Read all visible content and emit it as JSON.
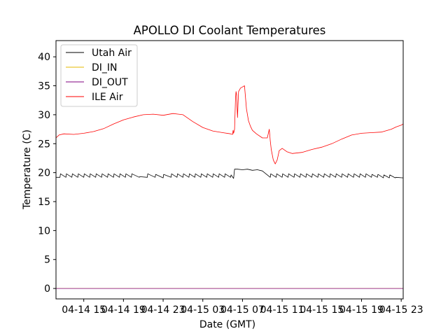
{
  "chart_data": {
    "type": "line",
    "title": "APOLLO DI Coolant Temperatures",
    "xlabel": "Date (GMT)",
    "ylabel": "Temperature (C)",
    "grid": false,
    "legend_position": "top-left",
    "x_unit": "hours since 04-14 11:00 GMT",
    "xlim": [
      1.2,
      36.2
    ],
    "ylim": [
      -1.8,
      42.8
    ],
    "x_ticks": [
      {
        "value": 4,
        "label": "04-14 15"
      },
      {
        "value": 8,
        "label": "04-14 19"
      },
      {
        "value": 12,
        "label": "04-14 23"
      },
      {
        "value": 16,
        "label": "04-15 03"
      },
      {
        "value": 20,
        "label": "04-15 07"
      },
      {
        "value": 24,
        "label": "04-15 11"
      },
      {
        "value": 28,
        "label": "04-15 15"
      },
      {
        "value": 32,
        "label": "04-15 19"
      },
      {
        "value": 36,
        "label": "04-15 23"
      }
    ],
    "y_ticks": [
      {
        "value": 0,
        "label": "0"
      },
      {
        "value": 5,
        "label": "5"
      },
      {
        "value": 10,
        "label": "10"
      },
      {
        "value": 15,
        "label": "15"
      },
      {
        "value": 20,
        "label": "20"
      },
      {
        "value": 25,
        "label": "25"
      },
      {
        "value": 30,
        "label": "30"
      },
      {
        "value": 35,
        "label": "35"
      },
      {
        "value": 40,
        "label": "40"
      }
    ],
    "series": [
      {
        "name": "Utah Air",
        "color": "#000000",
        "x": [
          1.2,
          1.6,
          1.65,
          2.2,
          2.25,
          2.8,
          2.85,
          3.4,
          3.45,
          4.0,
          4.05,
          4.6,
          4.65,
          5.2,
          5.25,
          5.8,
          5.85,
          6.4,
          6.45,
          7.0,
          7.05,
          7.6,
          7.65,
          8.2,
          8.25,
          8.8,
          8.85,
          9.6,
          9.65,
          10.4,
          10.45,
          11.2,
          11.25,
          12.0,
          12.05,
          12.8,
          12.85,
          13.4,
          13.45,
          14.0,
          14.05,
          14.6,
          14.65,
          15.2,
          15.25,
          15.8,
          15.85,
          16.4,
          16.45,
          17.0,
          17.05,
          17.6,
          17.65,
          18.2,
          18.25,
          18.8,
          18.85,
          19.1,
          19.2,
          19.5,
          20.0,
          20.5,
          21.0,
          21.5,
          22.0,
          22.5,
          22.8,
          22.85,
          23.4,
          23.45,
          24.0,
          24.05,
          24.6,
          24.65,
          25.2,
          25.25,
          25.8,
          25.85,
          26.4,
          26.45,
          27.0,
          27.05,
          27.6,
          27.65,
          28.2,
          28.25,
          28.8,
          28.85,
          29.4,
          29.45,
          30.0,
          30.05,
          30.6,
          30.65,
          31.2,
          31.25,
          31.8,
          31.85,
          32.4,
          32.45,
          33.0,
          33.05,
          33.6,
          33.65,
          34.2,
          34.25,
          34.8,
          34.85,
          35.4,
          35.45,
          36.2
        ],
        "y": [
          19.2,
          19.2,
          19.8,
          19.2,
          19.8,
          19.2,
          19.8,
          19.2,
          19.8,
          19.2,
          19.8,
          19.2,
          19.8,
          19.2,
          19.8,
          19.2,
          19.8,
          19.2,
          19.8,
          19.2,
          19.8,
          19.2,
          19.8,
          19.2,
          19.8,
          19.2,
          19.8,
          19.2,
          19.3,
          19.2,
          19.8,
          19.2,
          19.7,
          19.1,
          19.7,
          19.2,
          19.8,
          19.2,
          19.8,
          19.2,
          19.8,
          19.2,
          19.8,
          19.2,
          19.8,
          19.2,
          19.8,
          19.2,
          19.8,
          19.2,
          19.8,
          19.2,
          19.8,
          19.2,
          19.8,
          19.2,
          19.6,
          19.0,
          20.6,
          20.6,
          20.5,
          20.6,
          20.4,
          20.5,
          20.3,
          19.6,
          19.2,
          19.8,
          19.2,
          19.8,
          19.2,
          19.8,
          19.2,
          19.8,
          19.2,
          19.8,
          19.2,
          19.8,
          19.2,
          19.8,
          19.2,
          19.8,
          19.2,
          19.8,
          19.2,
          19.8,
          19.2,
          19.8,
          19.2,
          19.8,
          19.2,
          19.8,
          19.2,
          19.8,
          19.2,
          19.8,
          19.2,
          19.8,
          19.2,
          19.8,
          19.2,
          19.7,
          19.2,
          19.7,
          19.1,
          19.6,
          19.1,
          19.6,
          19.1,
          19.2,
          19.1
        ]
      },
      {
        "name": "DI_IN",
        "color": "#e6b800",
        "x": [
          1.2,
          36.2
        ],
        "y": [
          0.0,
          0.0
        ]
      },
      {
        "name": "DI_OUT",
        "color": "#800080",
        "x": [
          1.2,
          36.2
        ],
        "y": [
          0.0,
          0.0
        ]
      },
      {
        "name": "ILE Air",
        "color": "#ff0000",
        "x": [
          1.2,
          1.5,
          2.0,
          3.0,
          4.0,
          5.0,
          6.0,
          7.0,
          8.0,
          9.0,
          10.0,
          11.0,
          12.0,
          13.0,
          14.0,
          15.0,
          16.0,
          17.0,
          18.0,
          18.8,
          19.0,
          19.05,
          19.1,
          19.2,
          19.3,
          19.35,
          19.4,
          19.5,
          19.6,
          19.7,
          19.8,
          20.0,
          20.2,
          20.4,
          20.6,
          20.8,
          21.0,
          21.4,
          22.0,
          22.5,
          22.7,
          22.8,
          22.9,
          23.1,
          23.3,
          23.5,
          23.7,
          24.0,
          24.5,
          25.0,
          26.0,
          27.0,
          28.0,
          29.0,
          30.0,
          31.0,
          32.0,
          33.0,
          34.0,
          35.0,
          35.5,
          36.0,
          36.2
        ],
        "y": [
          26.0,
          26.5,
          26.7,
          26.6,
          26.8,
          27.1,
          27.6,
          28.4,
          29.1,
          29.6,
          30.0,
          30.1,
          29.9,
          30.2,
          30.0,
          28.8,
          27.8,
          27.2,
          26.9,
          26.7,
          26.6,
          27.3,
          26.8,
          27.5,
          33.0,
          34.0,
          33.5,
          29.5,
          34.0,
          34.3,
          34.6,
          34.8,
          35.0,
          31.0,
          29.0,
          28.0,
          27.3,
          26.7,
          26.0,
          26.0,
          27.5,
          25.5,
          24.0,
          22.2,
          21.5,
          22.2,
          23.8,
          24.2,
          23.6,
          23.3,
          23.5,
          24.0,
          24.4,
          25.0,
          25.8,
          26.5,
          26.8,
          26.9,
          27.0,
          27.5,
          27.9,
          28.2,
          28.4
        ]
      }
    ]
  }
}
